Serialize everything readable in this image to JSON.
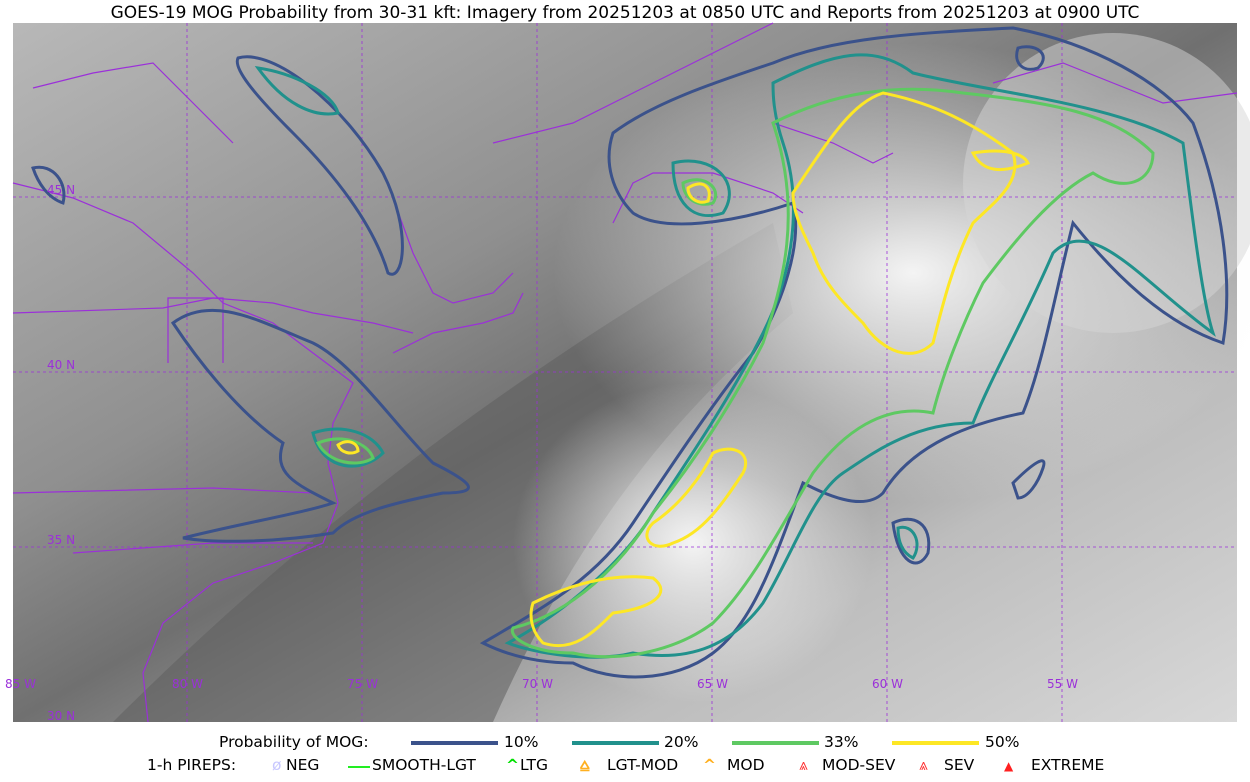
{
  "title": "GOES-19 MOG Probability from 30-31 kft: Imagery from 20251203 at 0850 UTC and Reports from 20251203 at 0900 UTC",
  "map": {
    "longitude_labels": [
      "85 W",
      "80 W",
      "75 W",
      "70 W",
      "65 W",
      "60 W",
      "55 W"
    ],
    "latitude_labels": [
      "45 N",
      "40 N",
      "35 N",
      "30 N"
    ],
    "boundary_color": "#9b30d9"
  },
  "legend": {
    "prob_title": "Probability of MOG:",
    "levels": [
      {
        "label": "10%",
        "color": "#3b528b"
      },
      {
        "label": "20%",
        "color": "#21918c"
      },
      {
        "label": "33%",
        "color": "#5ec962"
      },
      {
        "label": "50%",
        "color": "#fde725"
      }
    ],
    "pirep_title": "1-h PIREPS:",
    "pireps": [
      {
        "label": "NEG",
        "color": "#c8c8ff",
        "icon": "neg-icon"
      },
      {
        "label": "SMOOTH-LGT",
        "color": "#22ee22",
        "icon": "line-icon"
      },
      {
        "label": "LTG",
        "color": "#00e000",
        "icon": "caret-icon"
      },
      {
        "label": "LGT-MOD",
        "color": "#ffb020",
        "icon": "caret-bar-icon"
      },
      {
        "label": "MOD",
        "color": "#ffb020",
        "icon": "caret-icon"
      },
      {
        "label": "MOD-SEV",
        "color": "#ff3030",
        "icon": "double-caret-bar-icon"
      },
      {
        "label": "SEV",
        "color": "#ff3030",
        "icon": "double-caret-icon"
      },
      {
        "label": "EXTREME",
        "color": "#ff2020",
        "icon": "filled-triangle-icon"
      }
    ]
  }
}
